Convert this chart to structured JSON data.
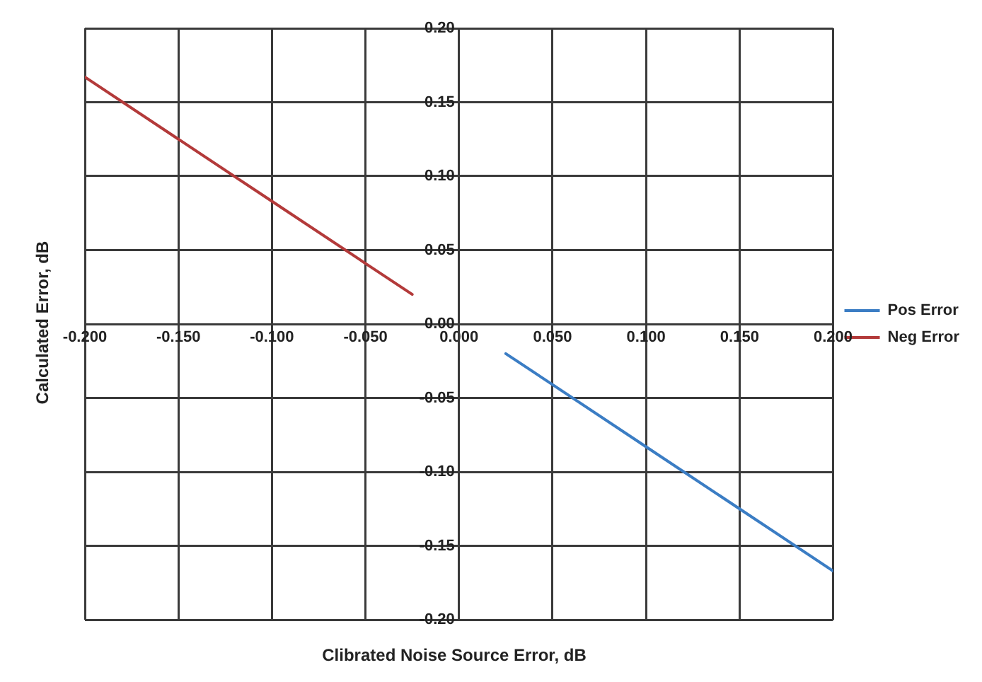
{
  "chart_data": {
    "type": "line",
    "xlabel": "Clibrated Noise Source Error, dB",
    "ylabel": "Calculated Error, dB",
    "series": [
      {
        "name": "Pos Error",
        "color": "#3b7dc4",
        "x": [
          0.025,
          0.05,
          0.1,
          0.15,
          0.2
        ],
        "values": [
          -0.02,
          -0.041,
          -0.083,
          -0.125,
          -0.167
        ]
      },
      {
        "name": "Neg Error",
        "color": "#b33a3a",
        "x": [
          -0.2,
          -0.15,
          -0.1,
          -0.05,
          -0.025
        ],
        "values": [
          0.167,
          0.125,
          0.083,
          0.041,
          0.02
        ]
      }
    ],
    "xlim": [
      -0.2,
      0.2
    ],
    "ylim": [
      -0.2,
      0.2
    ],
    "xticks": [
      {
        "value": -0.2,
        "label": "-0.200"
      },
      {
        "value": -0.15,
        "label": "-0.150"
      },
      {
        "value": -0.1,
        "label": "-0.100"
      },
      {
        "value": -0.05,
        "label": "-0.050"
      },
      {
        "value": 0,
        "label": "0.000"
      },
      {
        "value": 0.05,
        "label": "0.050"
      },
      {
        "value": 0.1,
        "label": "0.100"
      },
      {
        "value": 0.15,
        "label": "0.150"
      },
      {
        "value": 0.2,
        "label": "0.200"
      }
    ],
    "yticks": [
      {
        "value": -0.2,
        "label": "-0.20"
      },
      {
        "value": -0.15,
        "label": "-0.15"
      },
      {
        "value": -0.1,
        "label": "-0.10"
      },
      {
        "value": -0.05,
        "label": "-0.05"
      },
      {
        "value": 0,
        "label": "0.00"
      },
      {
        "value": 0.05,
        "label": "0.05"
      },
      {
        "value": 0.1,
        "label": "0.10"
      },
      {
        "value": 0.15,
        "label": "0.15"
      },
      {
        "value": 0.2,
        "label": "0.20"
      }
    ],
    "grid": true,
    "legend": "right",
    "marker": "none",
    "line_style": "solid"
  }
}
